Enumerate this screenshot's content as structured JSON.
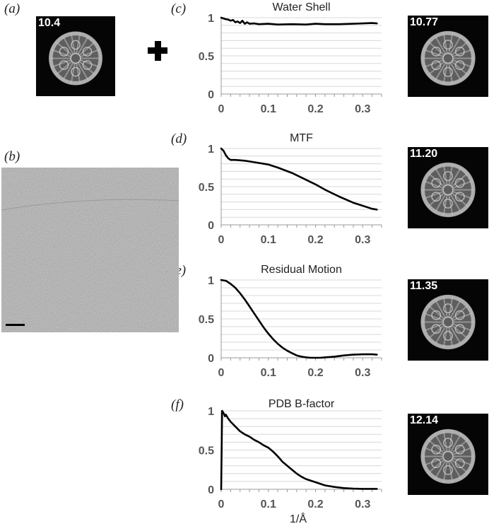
{
  "panels": {
    "a": "(a)",
    "b": "(b)",
    "c": "(c)",
    "d": "(d)",
    "e": "(e)",
    "f": "(f)"
  },
  "thumbnails": {
    "input": "10.4",
    "water_shell": "10.77",
    "mtf": "11.20",
    "residual_motion": "11.35",
    "pdb_bfactor": "12.14"
  },
  "x_axis_title": "1/Å",
  "colors": {
    "curve": "#000000",
    "grid": "#d8d8d8",
    "tick_text": "#555555",
    "thumb_bg": "#050505"
  },
  "chart_data": [
    {
      "type": "line",
      "title": "Water Shell",
      "xlim": [
        0,
        0.34
      ],
      "ylim": [
        0,
        1
      ],
      "x_ticks": [
        "0",
        "0.1",
        "0.2",
        "0.3"
      ],
      "y_ticks": [
        "0",
        "0.5",
        "1"
      ],
      "series": [
        {
          "x": [
            0,
            0.005,
            0.01,
            0.015,
            0.02,
            0.025,
            0.03,
            0.035,
            0.04,
            0.045,
            0.05,
            0.055,
            0.06,
            0.07,
            0.08,
            0.1,
            0.12,
            0.15,
            0.18,
            0.2,
            0.22,
            0.25,
            0.28,
            0.3,
            0.32,
            0.33
          ],
          "y": [
            1.0,
            0.99,
            0.98,
            0.975,
            0.96,
            0.97,
            0.94,
            0.95,
            0.93,
            0.96,
            0.92,
            0.94,
            0.92,
            0.925,
            0.915,
            0.92,
            0.91,
            0.915,
            0.91,
            0.92,
            0.915,
            0.915,
            0.92,
            0.925,
            0.93,
            0.925
          ]
        }
      ]
    },
    {
      "type": "line",
      "title": "MTF",
      "xlim": [
        0,
        0.34
      ],
      "ylim": [
        0,
        1
      ],
      "x_ticks": [
        "0",
        "0.1",
        "0.2",
        "0.3"
      ],
      "y_ticks": [
        "0",
        "0.5",
        "1"
      ],
      "series": [
        {
          "x": [
            0,
            0.005,
            0.01,
            0.015,
            0.02,
            0.03,
            0.05,
            0.07,
            0.1,
            0.12,
            0.15,
            0.18,
            0.2,
            0.22,
            0.25,
            0.28,
            0.3,
            0.32,
            0.33
          ],
          "y": [
            1.0,
            0.97,
            0.91,
            0.87,
            0.85,
            0.85,
            0.84,
            0.82,
            0.79,
            0.75,
            0.68,
            0.59,
            0.53,
            0.46,
            0.37,
            0.29,
            0.25,
            0.21,
            0.2
          ]
        }
      ]
    },
    {
      "type": "line",
      "title": "Residual Motion",
      "xlim": [
        0,
        0.34
      ],
      "ylim": [
        0,
        1
      ],
      "x_ticks": [
        "0",
        "0.1",
        "0.2",
        "0.3"
      ],
      "y_ticks": [
        "0",
        "0.5",
        "1"
      ],
      "series": [
        {
          "x": [
            0,
            0.01,
            0.02,
            0.03,
            0.04,
            0.05,
            0.06,
            0.07,
            0.08,
            0.09,
            0.1,
            0.11,
            0.12,
            0.13,
            0.14,
            0.15,
            0.16,
            0.17,
            0.18,
            0.19,
            0.2,
            0.21,
            0.22,
            0.24,
            0.26,
            0.28,
            0.3,
            0.32,
            0.33
          ],
          "y": [
            1.0,
            0.99,
            0.95,
            0.9,
            0.83,
            0.75,
            0.66,
            0.57,
            0.48,
            0.39,
            0.31,
            0.24,
            0.18,
            0.13,
            0.09,
            0.06,
            0.03,
            0.015,
            0.005,
            0.0,
            0.0,
            0.0,
            0.005,
            0.015,
            0.03,
            0.04,
            0.045,
            0.045,
            0.04
          ]
        }
      ]
    },
    {
      "type": "line",
      "title": "PDB B-factor",
      "xlim": [
        0,
        0.34
      ],
      "ylim": [
        0,
        1
      ],
      "x_ticks": [
        "0",
        "0.1",
        "0.2",
        "0.3"
      ],
      "y_ticks": [
        "0",
        "0.5",
        "1"
      ],
      "series": [
        {
          "x": [
            0,
            0.002,
            0.004,
            0.006,
            0.008,
            0.01,
            0.015,
            0.02,
            0.03,
            0.04,
            0.05,
            0.06,
            0.07,
            0.08,
            0.09,
            0.1,
            0.11,
            0.12,
            0.13,
            0.14,
            0.15,
            0.16,
            0.17,
            0.18,
            0.2,
            0.22,
            0.24,
            0.26,
            0.28,
            0.3,
            0.32,
            0.33
          ],
          "y": [
            0.0,
            1.0,
            0.98,
            0.96,
            0.93,
            0.95,
            0.9,
            0.86,
            0.8,
            0.74,
            0.7,
            0.67,
            0.63,
            0.6,
            0.56,
            0.53,
            0.48,
            0.42,
            0.35,
            0.3,
            0.25,
            0.2,
            0.16,
            0.13,
            0.09,
            0.05,
            0.03,
            0.015,
            0.008,
            0.005,
            0.005,
            0.005
          ]
        }
      ]
    }
  ]
}
